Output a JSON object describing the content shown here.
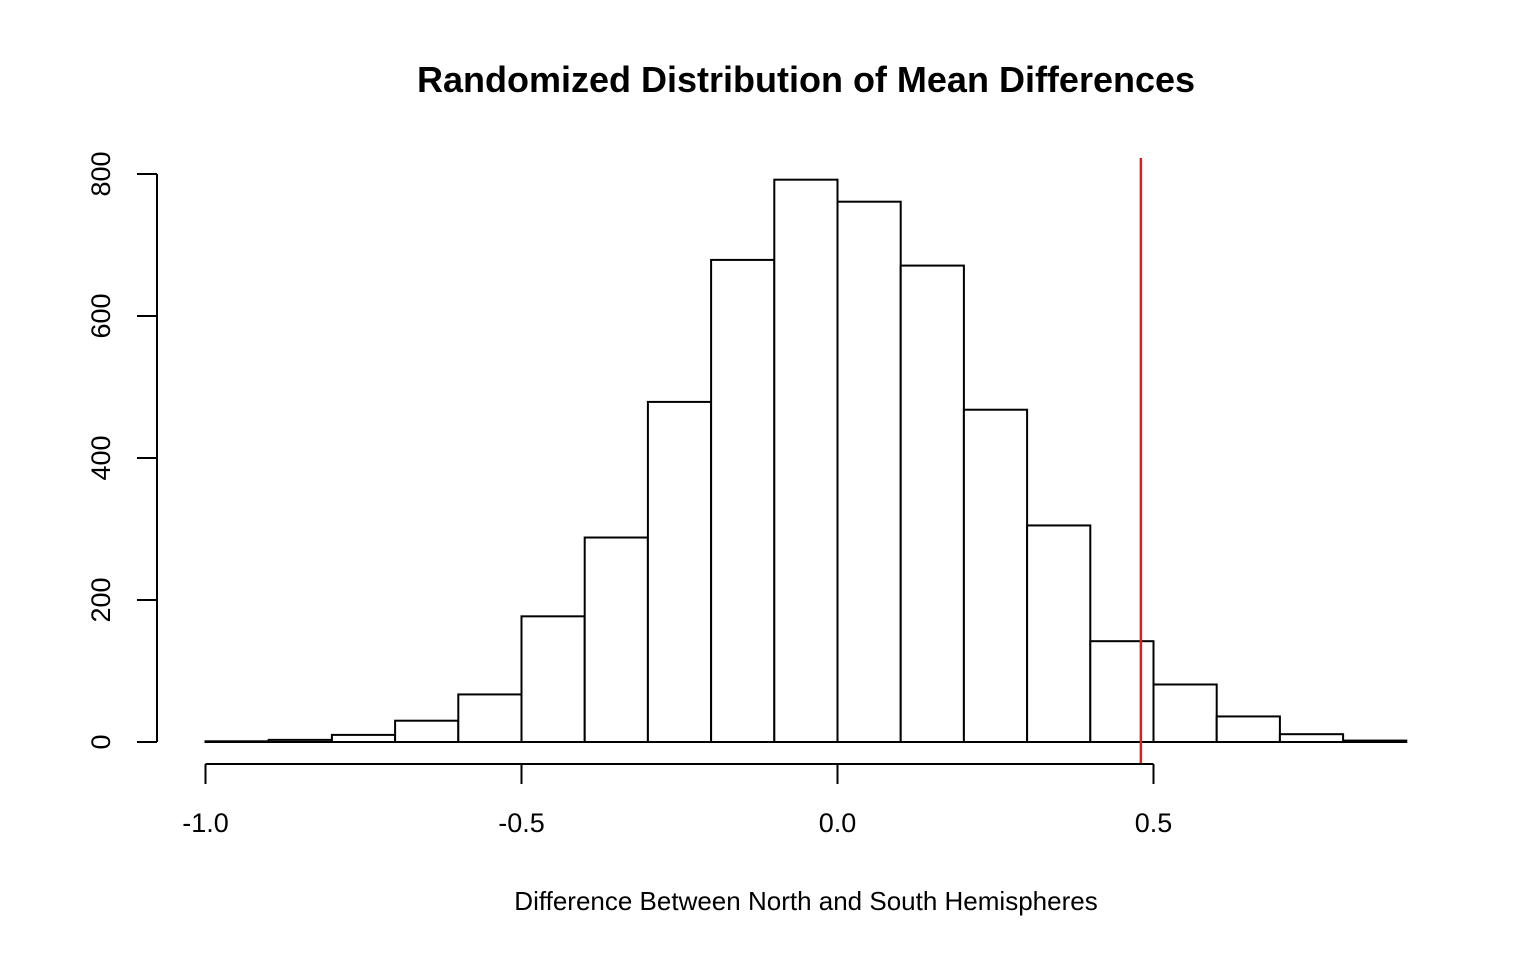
{
  "chart_data": {
    "type": "bar",
    "title": "Randomized Distribution of Mean Differences",
    "xlabel": "Difference Between North and South Hemispheres",
    "ylabel": "",
    "bins": [
      {
        "x0": -1.0,
        "x1": -0.9,
        "count": 1
      },
      {
        "x0": -0.9,
        "x1": -0.8,
        "count": 3
      },
      {
        "x0": -0.8,
        "x1": -0.7,
        "count": 10
      },
      {
        "x0": -0.7,
        "x1": -0.6,
        "count": 30
      },
      {
        "x0": -0.6,
        "x1": -0.5,
        "count": 67
      },
      {
        "x0": -0.5,
        "x1": -0.4,
        "count": 177
      },
      {
        "x0": -0.4,
        "x1": -0.3,
        "count": 288
      },
      {
        "x0": -0.3,
        "x1": -0.2,
        "count": 479
      },
      {
        "x0": -0.2,
        "x1": -0.1,
        "count": 679
      },
      {
        "x0": -0.1,
        "x1": 0.0,
        "count": 792
      },
      {
        "x0": 0.0,
        "x1": 0.1,
        "count": 761
      },
      {
        "x0": 0.1,
        "x1": 0.2,
        "count": 671
      },
      {
        "x0": 0.2,
        "x1": 0.3,
        "count": 468
      },
      {
        "x0": 0.3,
        "x1": 0.4,
        "count": 305
      },
      {
        "x0": 0.4,
        "x1": 0.5,
        "count": 142
      },
      {
        "x0": 0.5,
        "x1": 0.6,
        "count": 81
      },
      {
        "x0": 0.6,
        "x1": 0.7,
        "count": 36
      },
      {
        "x0": 0.7,
        "x1": 0.8,
        "count": 11
      },
      {
        "x0": 0.8,
        "x1": 0.9,
        "count": 2
      }
    ],
    "reference_line": {
      "x": 0.48,
      "color": "#e41a1c"
    },
    "xlim": [
      -1.0,
      0.9
    ],
    "ylim": [
      0,
      800
    ],
    "x_ticks": [
      -1.0,
      -0.5,
      0.0,
      0.5
    ],
    "x_tick_labels": [
      "-1.0",
      "-0.5",
      "0.0",
      "0.5"
    ],
    "y_ticks": [
      0,
      200,
      400,
      600,
      800
    ],
    "y_tick_labels": [
      "0",
      "200",
      "400",
      "600",
      "800"
    ],
    "bar_fill": "#ffffff",
    "bar_stroke": "#000000",
    "grid": false,
    "legend": "none"
  }
}
